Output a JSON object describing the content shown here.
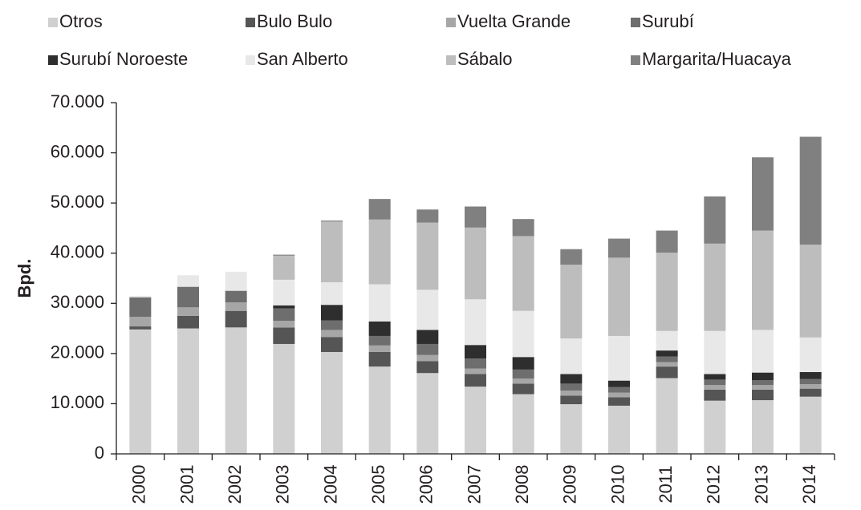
{
  "chart_data": {
    "type": "stacked_bar",
    "y_label": "Bpd.",
    "categories": [
      "2000",
      "2001",
      "2002",
      "2003",
      "2004",
      "2005",
      "2006",
      "2007",
      "2008",
      "2009",
      "2010",
      "2011",
      "2012",
      "2013",
      "2014"
    ],
    "series": [
      {
        "name": "Otros",
        "color": "#d0d0d0",
        "values": [
          24800,
          25000,
          25200,
          21900,
          20300,
          17400,
          16100,
          13400,
          11900,
          9900,
          9600,
          15100,
          10600,
          10700,
          11400
        ]
      },
      {
        "name": "Bulo Bulo",
        "color": "#555555",
        "values": [
          600,
          2500,
          3300,
          3300,
          3000,
          2900,
          2400,
          2500,
          2100,
          1700,
          1700,
          2300,
          2200,
          2100,
          1600
        ]
      },
      {
        "name": "Vuelta Grande",
        "color": "#a6a6a6",
        "values": [
          1900,
          1700,
          1700,
          1300,
          1400,
          1300,
          1200,
          1100,
          1000,
          1000,
          900,
          900,
          900,
          900,
          900
        ]
      },
      {
        "name": "Surubí",
        "color": "#6e6e6e",
        "values": [
          3900,
          4100,
          2300,
          2500,
          1900,
          1900,
          2200,
          2000,
          1800,
          1400,
          1100,
          1100,
          1100,
          1000,
          1000
        ]
      },
      {
        "name": "Surubí Noroeste",
        "color": "#2e2e2e",
        "values": [
          0,
          0,
          0,
          600,
          3100,
          2900,
          2800,
          2700,
          2500,
          1900,
          1300,
          1200,
          1100,
          1500,
          1400
        ]
      },
      {
        "name": "San Alberto",
        "color": "#e8e8e8",
        "values": [
          300,
          2300,
          3800,
          5100,
          4500,
          7400,
          8000,
          9100,
          9200,
          7100,
          8900,
          3900,
          8600,
          8500,
          6900
        ]
      },
      {
        "name": "Sábalo",
        "color": "#bdbdbd",
        "values": [
          0,
          0,
          0,
          4800,
          12100,
          12900,
          13400,
          14300,
          14900,
          14700,
          15600,
          15600,
          17400,
          19800,
          18500
        ]
      },
      {
        "name": "Margarita/Huacaya",
        "color": "#808080",
        "values": [
          0,
          0,
          0,
          200,
          200,
          4100,
          2600,
          4200,
          3400,
          3100,
          3800,
          4400,
          9400,
          14600,
          21500
        ]
      }
    ],
    "ylim": [
      0,
      70000
    ],
    "yticks": [
      0,
      {
        "value": 10000,
        "label": "10.000"
      },
      {
        "value": 20000,
        "label": "20.000"
      },
      {
        "value": 30000,
        "label": "30.000"
      },
      {
        "value": 40000,
        "label": "40.000"
      },
      {
        "value": 50000,
        "label": "50.000"
      },
      {
        "value": 60000,
        "label": "60.000"
      },
      {
        "value": 70000,
        "label": "70.000"
      }
    ],
    "legend": "top"
  }
}
